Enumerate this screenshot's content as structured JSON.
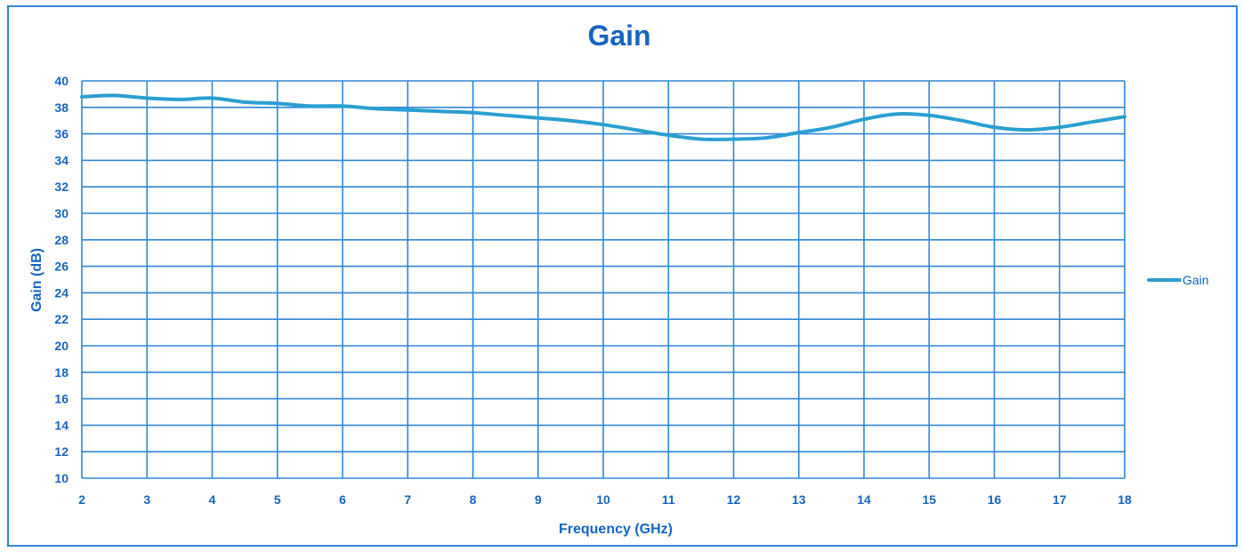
{
  "chart_data": {
    "type": "line",
    "title": "Gain",
    "xlabel": "Frequency (GHz)",
    "ylabel": "Gain (dB)",
    "xlim": [
      2,
      18
    ],
    "ylim": [
      10,
      40
    ],
    "x_ticks": [
      "2",
      "3",
      "4",
      "5",
      "6",
      "7",
      "8",
      "9",
      "10",
      "11",
      "12",
      "13",
      "14",
      "15",
      "16",
      "17",
      "18"
    ],
    "y_ticks": [
      "10",
      "12",
      "14",
      "16",
      "18",
      "20",
      "22",
      "24",
      "26",
      "28",
      "30",
      "32",
      "34",
      "36",
      "38",
      "40"
    ],
    "grid": true,
    "legend_position": "right",
    "series": [
      {
        "name": "Gain",
        "color": "#2a9fd1",
        "x": [
          2,
          2.5,
          3,
          3.5,
          4,
          4.5,
          5,
          5.5,
          6,
          6.5,
          7,
          7.5,
          8,
          8.5,
          9,
          9.5,
          10,
          10.5,
          11,
          11.5,
          12,
          12.5,
          13,
          13.5,
          14,
          14.5,
          15,
          15.5,
          16,
          16.5,
          17,
          17.5,
          18
        ],
        "y": [
          38.8,
          38.9,
          38.7,
          38.6,
          38.7,
          38.4,
          38.3,
          38.1,
          38.1,
          37.9,
          37.8,
          37.7,
          37.6,
          37.4,
          37.2,
          37.0,
          36.7,
          36.3,
          35.9,
          35.6,
          35.6,
          35.7,
          36.1,
          36.5,
          37.1,
          37.5,
          37.4,
          37.0,
          36.5,
          36.3,
          36.5,
          36.9,
          37.3
        ]
      }
    ]
  }
}
